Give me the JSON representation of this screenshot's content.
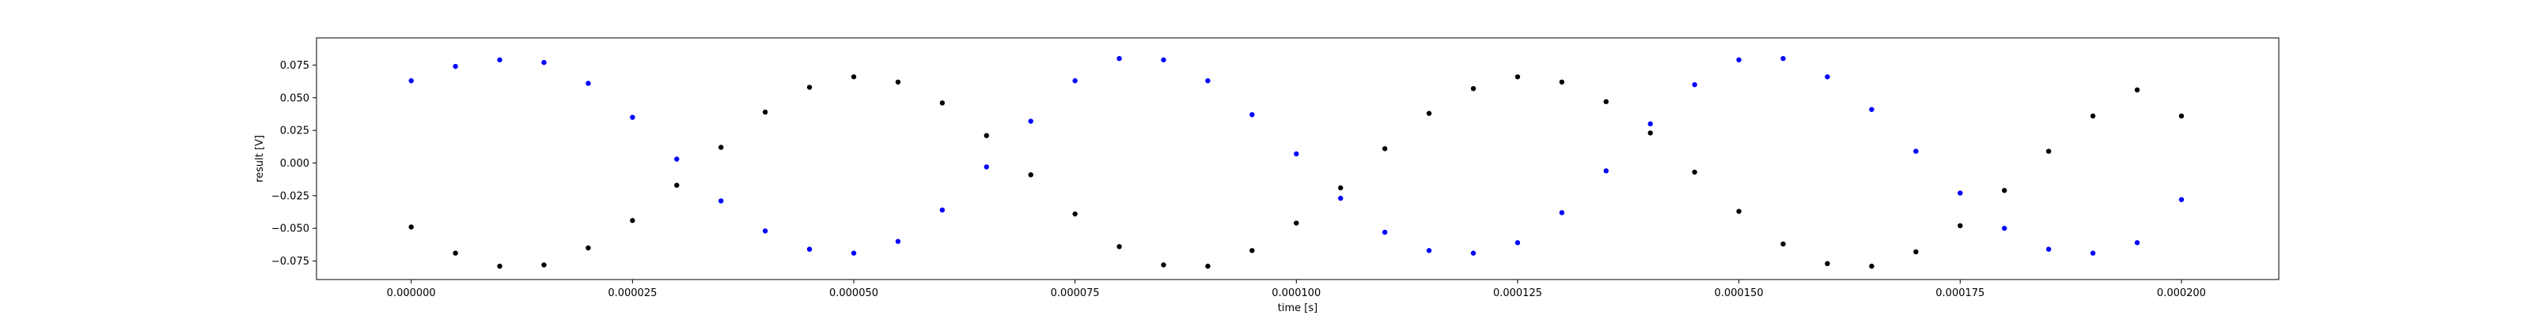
{
  "chart_data": {
    "type": "scatter",
    "title": "",
    "xlabel": "time [s]",
    "ylabel": "result [V]",
    "xlim": [
      -1.07e-05,
      0.000211
    ],
    "ylim": [
      -0.0892,
      0.0958
    ],
    "x_ticks": [
      {
        "value": 0.0,
        "label": "0.000000"
      },
      {
        "value": 2.5e-05,
        "label": "0.000025"
      },
      {
        "value": 5e-05,
        "label": "0.000050"
      },
      {
        "value": 7.5e-05,
        "label": "0.000075"
      },
      {
        "value": 0.0001,
        "label": "0.000100"
      },
      {
        "value": 0.000125,
        "label": "0.000125"
      },
      {
        "value": 0.00015,
        "label": "0.000150"
      },
      {
        "value": 0.000175,
        "label": "0.000175"
      },
      {
        "value": 0.0002,
        "label": "0.000200"
      }
    ],
    "y_ticks": [
      {
        "value": -0.075,
        "label": "−0.075"
      },
      {
        "value": -0.05,
        "label": "−0.050"
      },
      {
        "value": -0.025,
        "label": "−0.025"
      },
      {
        "value": 0.0,
        "label": "0.000"
      },
      {
        "value": 0.025,
        "label": "0.025"
      },
      {
        "value": 0.05,
        "label": "0.050"
      },
      {
        "value": 0.075,
        "label": "0.075"
      }
    ],
    "grid": false,
    "legend": "none",
    "series": [
      {
        "color": "#000000",
        "marker": "dot",
        "x": [
          0.0,
          5e-06,
          1e-05,
          1.5e-05,
          2e-05,
          2.5e-05,
          3e-05,
          3.5e-05,
          4e-05,
          4.5e-05,
          5e-05,
          5.5e-05,
          6e-05,
          6.5e-05,
          7e-05,
          7.5e-05,
          8e-05,
          8.5e-05,
          9e-05,
          9.5e-05,
          0.0001,
          0.000105,
          0.00011,
          0.000115,
          0.00012,
          0.000125,
          0.00013,
          0.000135,
          0.00014,
          0.000145,
          0.00015,
          0.000155,
          0.00016,
          0.000165,
          0.00017,
          0.000175,
          0.00018,
          0.000185,
          0.00019,
          0.000195,
          0.0002
        ],
        "y": [
          -0.049,
          -0.069,
          -0.079,
          -0.078,
          -0.065,
          -0.044,
          -0.017,
          0.012,
          0.039,
          0.058,
          0.066,
          0.062,
          0.046,
          0.021,
          -0.009,
          -0.039,
          -0.064,
          -0.078,
          -0.079,
          -0.067,
          -0.046,
          -0.019,
          0.011,
          0.038,
          0.057,
          0.066,
          0.062,
          0.047,
          0.023,
          -0.007,
          -0.037,
          -0.062,
          -0.077,
          -0.079,
          -0.068,
          -0.048,
          -0.021,
          0.009,
          0.036,
          0.056,
          0.036
        ]
      },
      {
        "color": "#0000ff",
        "marker": "dot",
        "x": [
          0.0,
          5e-06,
          1e-05,
          1.5e-05,
          2e-05,
          2.5e-05,
          3e-05,
          3.5e-05,
          4e-05,
          4.5e-05,
          5e-05,
          5.5e-05,
          6e-05,
          6.5e-05,
          7e-05,
          7.5e-05,
          8e-05,
          8.5e-05,
          9e-05,
          9.5e-05,
          0.0001,
          0.000105,
          0.00011,
          0.000115,
          0.00012,
          0.000125,
          0.00013,
          0.000135,
          0.00014,
          0.000145,
          0.00015,
          0.000155,
          0.00016,
          0.000165,
          0.00017,
          0.000175,
          0.00018,
          0.000185,
          0.00019,
          0.000195,
          0.0002
        ],
        "y": [
          0.063,
          0.074,
          0.079,
          0.077,
          0.061,
          0.035,
          0.003,
          -0.029,
          -0.052,
          -0.066,
          -0.069,
          -0.06,
          -0.036,
          -0.003,
          0.032,
          0.063,
          0.08,
          0.079,
          0.063,
          0.037,
          0.007,
          -0.027,
          -0.053,
          -0.067,
          -0.069,
          -0.061,
          -0.038,
          -0.006,
          0.03,
          0.06,
          0.079,
          0.08,
          0.066,
          0.041,
          0.009,
          -0.023,
          -0.05,
          -0.066,
          -0.069,
          -0.061,
          -0.028
        ]
      }
    ]
  }
}
